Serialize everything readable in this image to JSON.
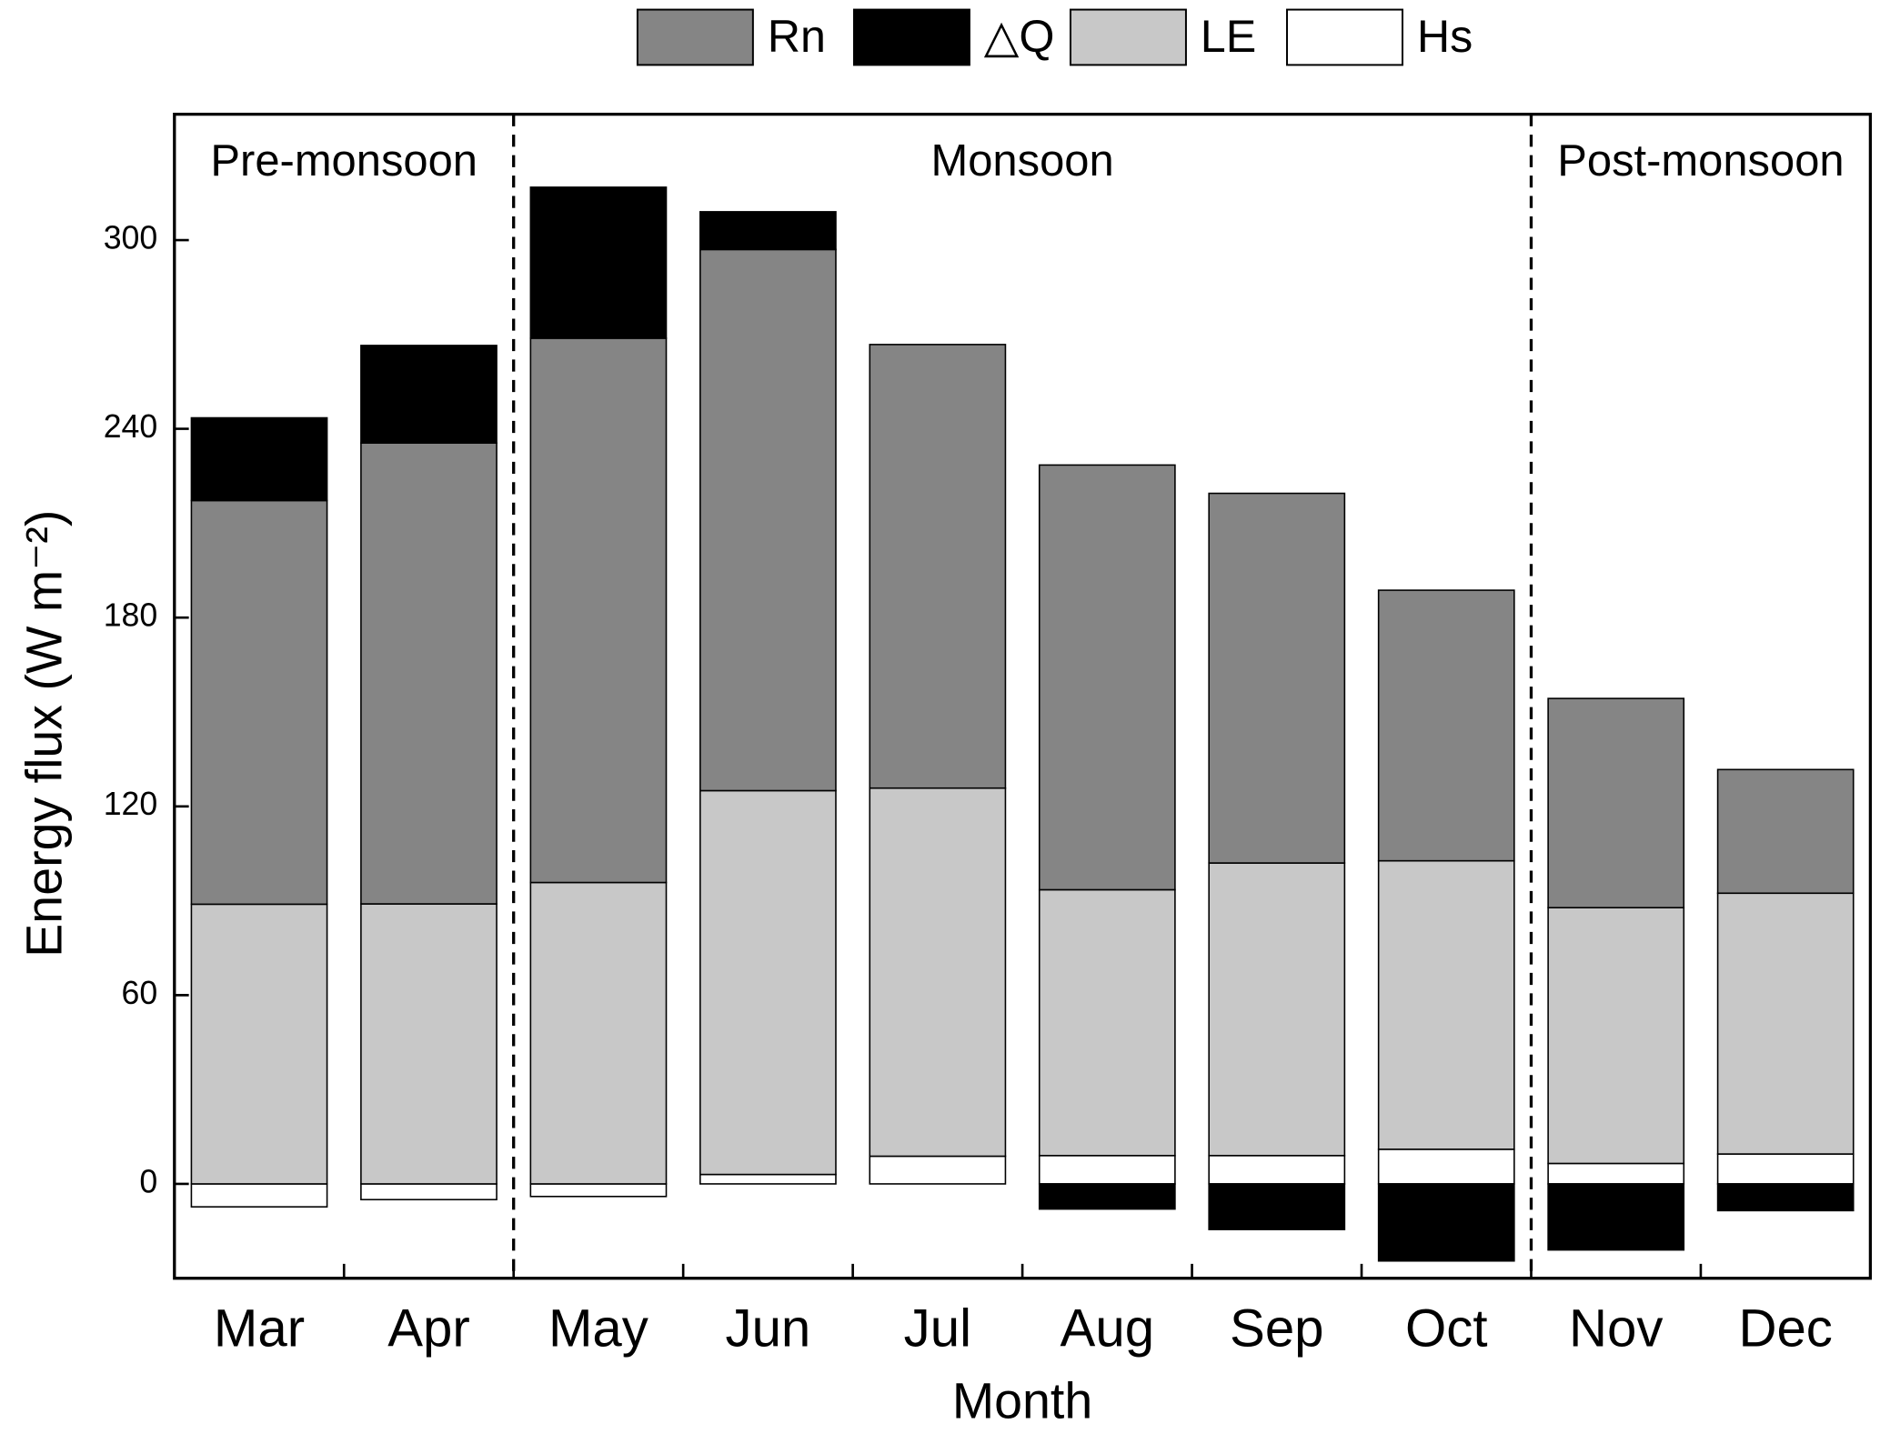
{
  "chart_data": {
    "type": "stacked-bar",
    "categories": [
      "Mar",
      "Apr",
      "May",
      "Jun",
      "Jul",
      "Aug",
      "Sep",
      "Oct",
      "Nov",
      "Dec"
    ],
    "series": [
      {
        "name": "Rn",
        "color": "#858585",
        "values": [
          128.3,
          146.5,
          173,
          172,
          141,
          135,
          117.5,
          86,
          66.5,
          39.3
        ]
      },
      {
        "name": "△Q",
        "color": "#000000",
        "values": [
          26.3,
          31,
          48,
          12,
          0,
          -8,
          -14.5,
          -24.5,
          -21,
          -8.5
        ]
      },
      {
        "name": "LE",
        "color": "#c8c8c8",
        "values": [
          88.9,
          89,
          95.8,
          122,
          117,
          84.5,
          93,
          91.7,
          81.3,
          82.9
        ]
      },
      {
        "name": "Hs",
        "color": "#ffffff",
        "values": [
          -7.3,
          -5,
          -4,
          3,
          8.8,
          9,
          9,
          11,
          6.5,
          9.5
        ]
      }
    ],
    "regions": [
      "Pre-monsoon",
      "Monsoon",
      "Post-monsoon"
    ],
    "x_label": "Month",
    "y_label": "Energy flux (W m⁻²)",
    "ylim": [
      -30,
      340
    ],
    "yticks": [
      0,
      60,
      120,
      180,
      240,
      300
    ],
    "legend": "top"
  }
}
